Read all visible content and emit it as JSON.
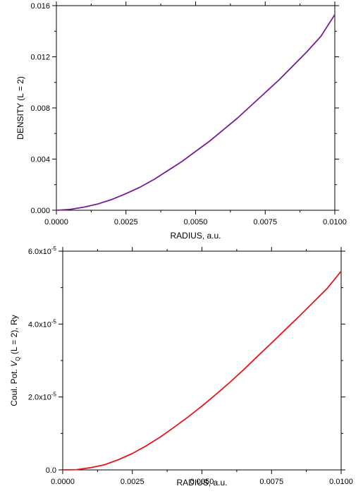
{
  "chart_data": [
    {
      "type": "line",
      "xlabel": "RADIUS, a.u.",
      "ylabel": "DENSITY (L = 2)",
      "xlim": [
        0,
        0.01
      ],
      "ylim": [
        0,
        0.016
      ],
      "x_ticks": [
        "0.0000",
        "0.0025",
        "0.0050",
        "0.0075",
        "0.0100"
      ],
      "y_ticks": [
        "0.000",
        "0.004",
        "0.008",
        "0.012",
        "0.016"
      ],
      "grid": false,
      "legend": "none",
      "series": [
        {
          "color": "#7a1a9a",
          "x": [
            0,
            0.0005,
            0.001,
            0.0015,
            0.002,
            0.0025,
            0.003,
            0.0035,
            0.004,
            0.0045,
            0.005,
            0.0055,
            0.006,
            0.0065,
            0.007,
            0.0075,
            0.008,
            0.0085,
            0.009,
            0.0095,
            0.01
          ],
          "y": [
            0,
            7e-05,
            0.00025,
            0.0005,
            0.00085,
            0.0013,
            0.0018,
            0.0024,
            0.0031,
            0.0038,
            0.0046,
            0.0054,
            0.0063,
            0.0072,
            0.0082,
            0.0092,
            0.0102,
            0.0113,
            0.0124,
            0.0136,
            0.0153
          ]
        }
      ]
    },
    {
      "type": "line",
      "xlabel": "RADIUS, a.u.",
      "ylabel": {
        "prefix": "Coul. Pot. ",
        "symbol": "V",
        "subscript": "Q",
        "suffix": " (L = 2), Ry"
      },
      "xlim": [
        0,
        0.01
      ],
      "ylim": [
        0,
        6e-05
      ],
      "x_ticks": [
        "0.0000",
        "0.0025",
        "0.0050",
        "0.0075",
        "0.0100"
      ],
      "y_ticks": [
        {
          "mantissa": "0.0",
          "exponent": ""
        },
        {
          "mantissa": "2.0x10",
          "exponent": "-5"
        },
        {
          "mantissa": "4.0x10",
          "exponent": "-5"
        },
        {
          "mantissa": "6.0x10",
          "exponent": "-5"
        }
      ],
      "grid": false,
      "legend": "none",
      "series": [
        {
          "color": "#e8141a",
          "x": [
            0,
            0.0005,
            0.001,
            0.0015,
            0.002,
            0.0025,
            0.003,
            0.0035,
            0.004,
            0.0045,
            0.005,
            0.0055,
            0.006,
            0.0065,
            0.007,
            0.0075,
            0.008,
            0.0085,
            0.009,
            0.0095,
            0.01
          ],
          "y": [
            0,
            8e-08,
            6e-07,
            1.4e-06,
            2.8e-06,
            4.5e-06,
            6.6e-06,
            9e-06,
            1.17e-05,
            1.45e-05,
            1.75e-05,
            2.07e-05,
            2.4e-05,
            2.75e-05,
            3.12e-05,
            3.48e-05,
            3.85e-05,
            4.22e-05,
            4.6e-05,
            4.98e-05,
            5.45e-05
          ]
        }
      ]
    }
  ]
}
